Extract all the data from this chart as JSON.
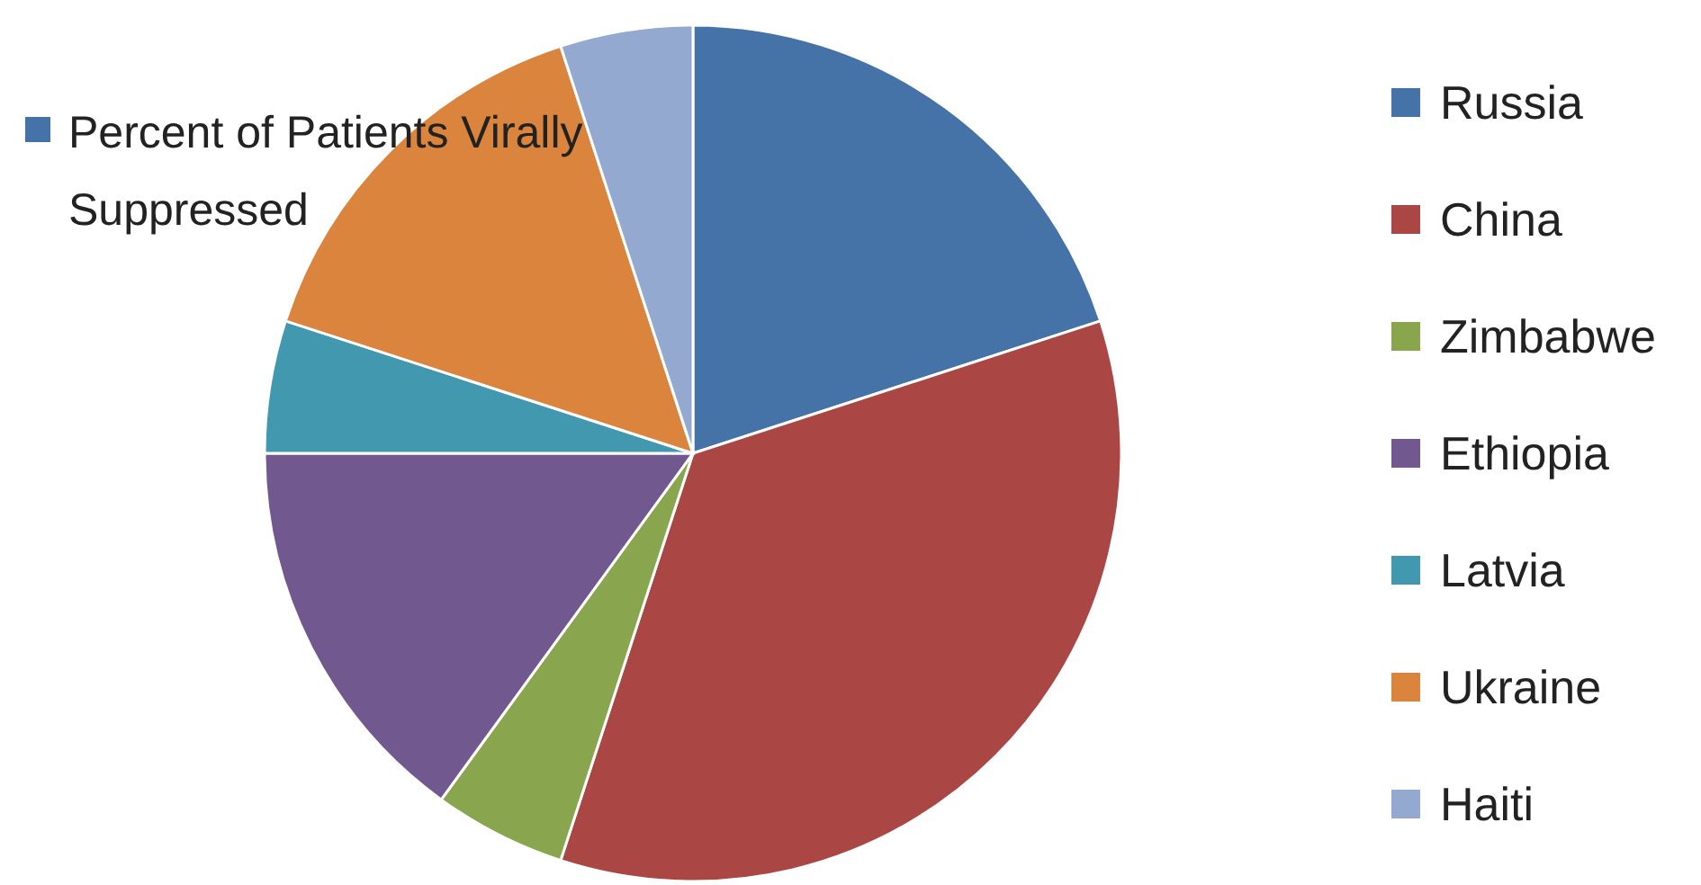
{
  "chart_data": {
    "type": "pie",
    "legend_title": "Percent of Patients Virally Suppressed",
    "legend": "right",
    "categories": [
      "Russia",
      "China",
      "Zimbabwe",
      "Ethiopia",
      "Latvia",
      "Ukraine",
      "Haiti"
    ],
    "values": [
      20,
      35,
      5,
      15,
      5,
      15,
      5
    ],
    "colors": [
      "#4572a7",
      "#aa4643",
      "#89a54e",
      "#71588f",
      "#4198af",
      "#db843d",
      "#93a9cf"
    ]
  }
}
